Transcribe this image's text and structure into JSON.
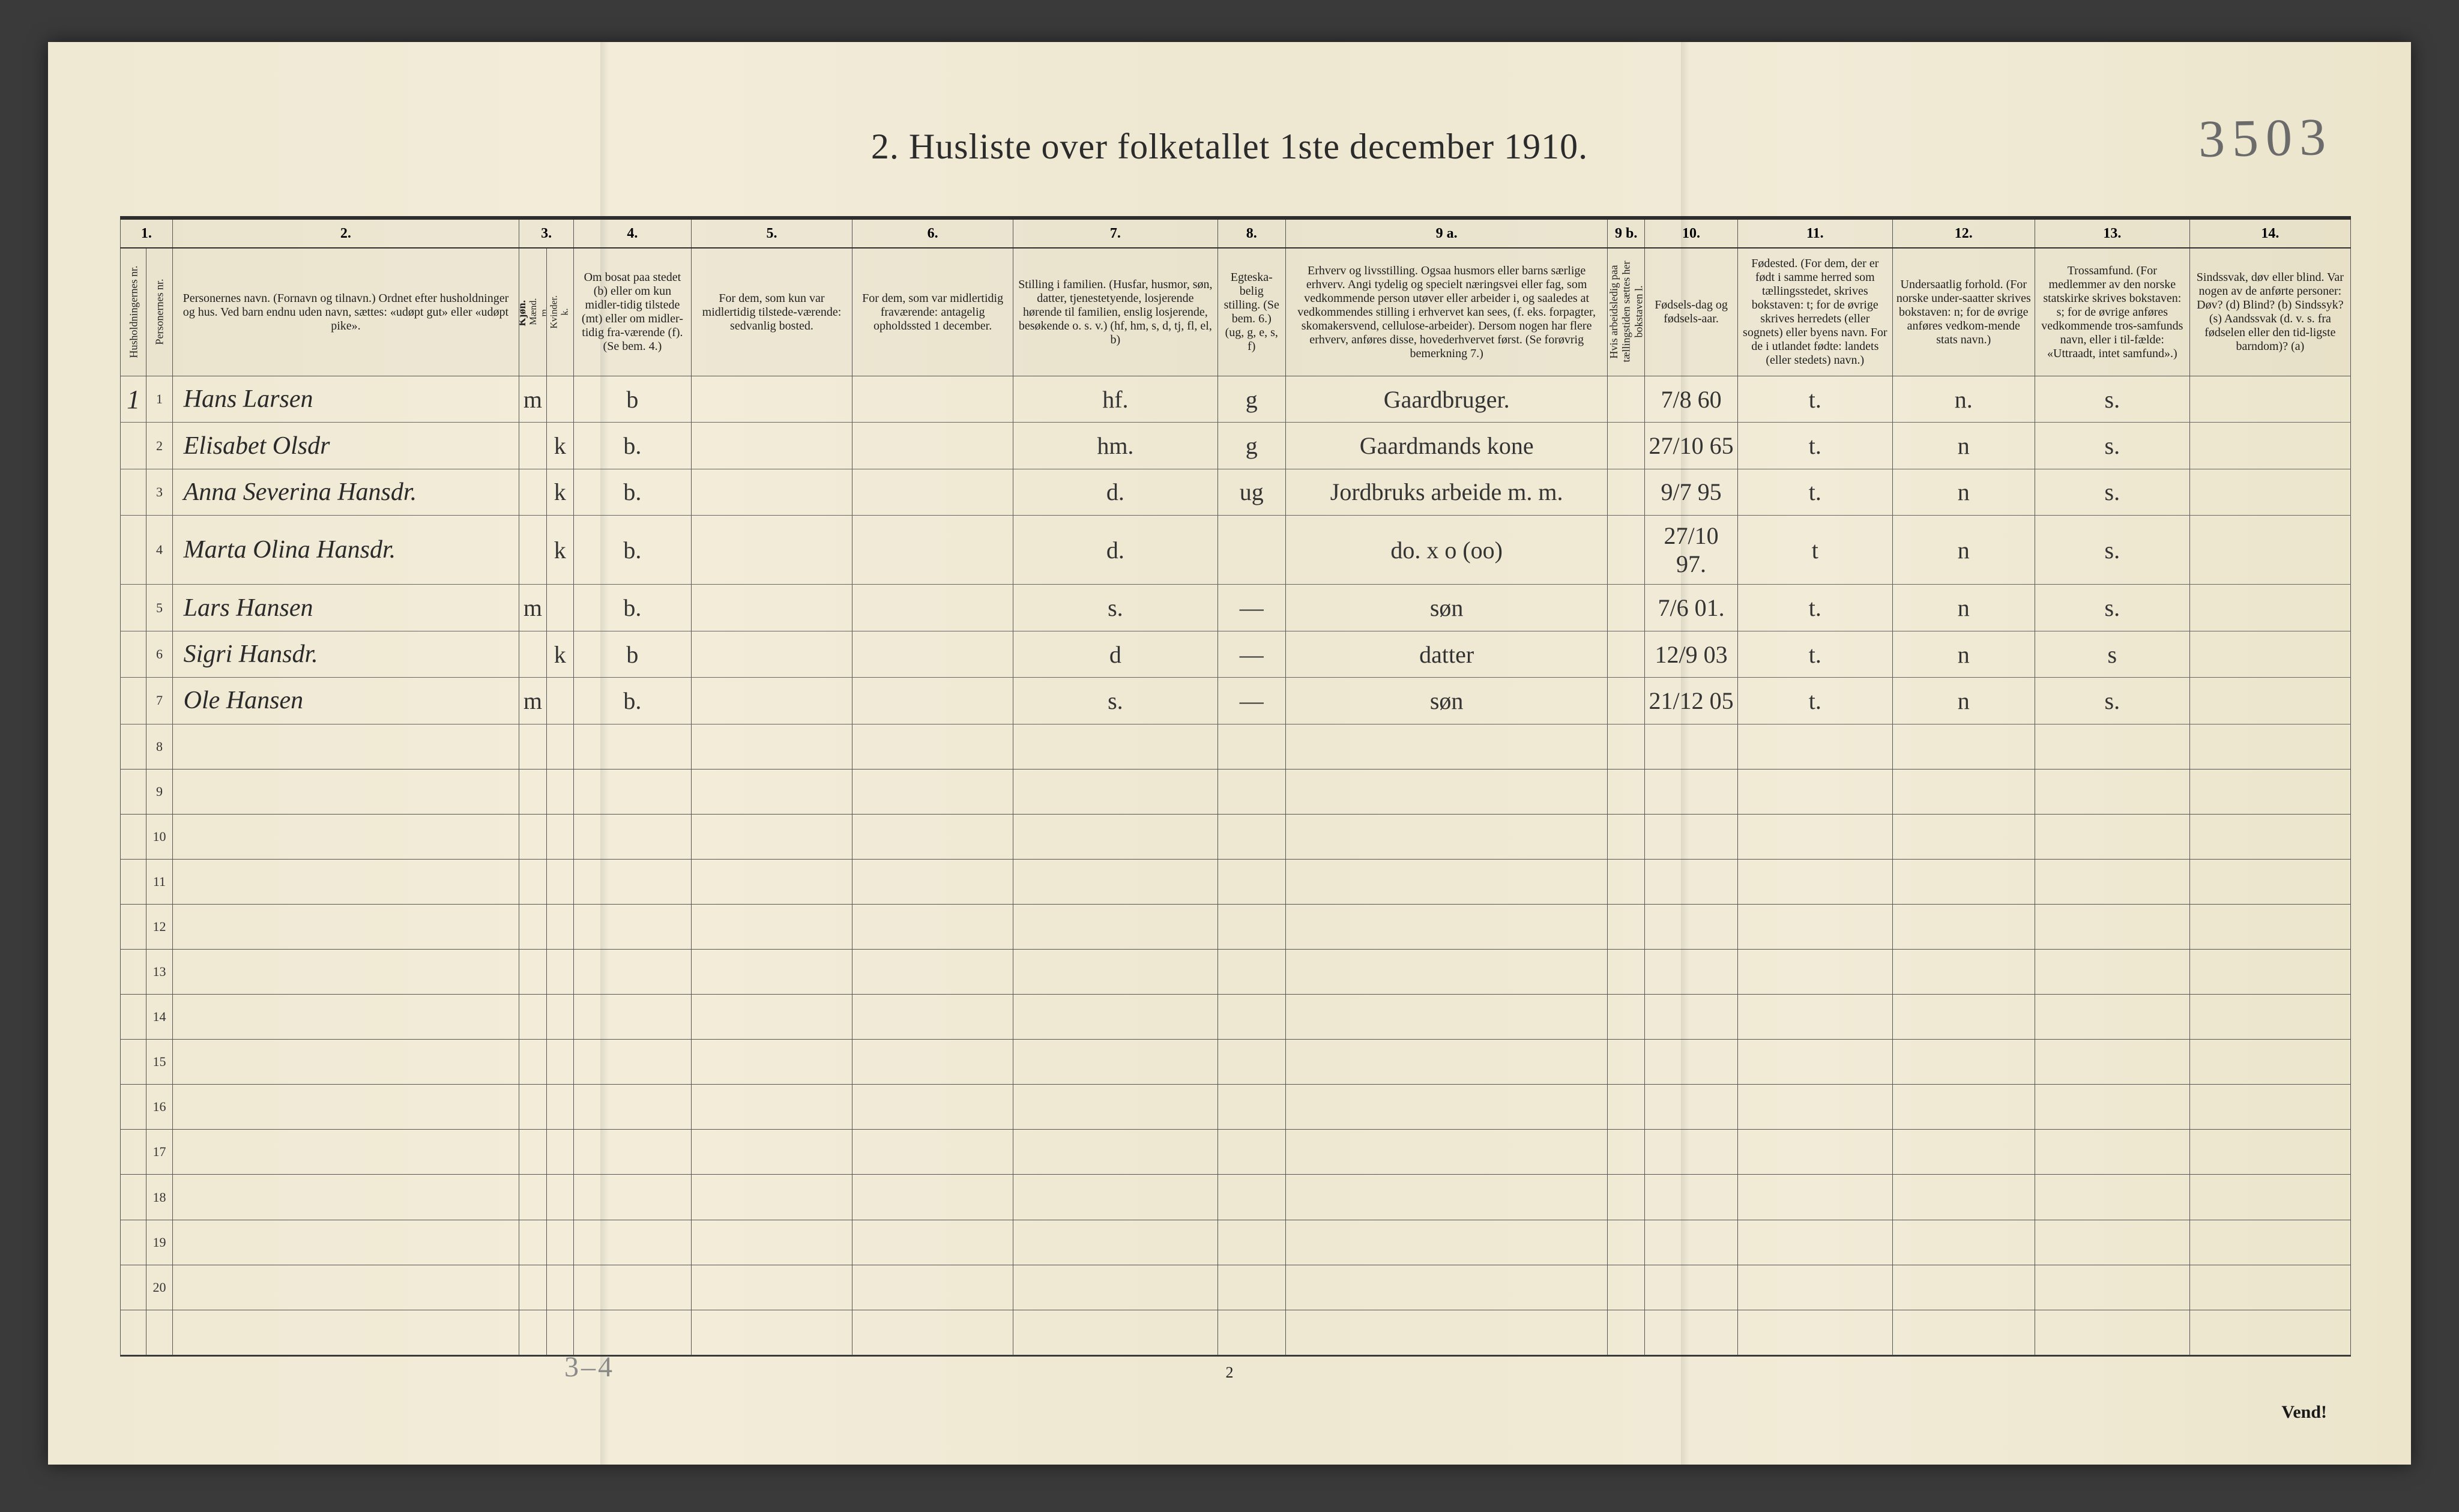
{
  "title": "2.  Husliste over folketallet 1ste december 1910.",
  "topright_pencil": "3503",
  "page_number": "2",
  "bottom_pencil": "3–4",
  "vend": "Vend!",
  "col_numbers": [
    "1.",
    "2.",
    "3.",
    "4.",
    "5.",
    "6.",
    "7.",
    "8.",
    "9 a.",
    "9 b.",
    "10.",
    "11.",
    "12.",
    "13.",
    "14."
  ],
  "headers": {
    "husholdning": "Husholdningernes nr.",
    "personnr": "Personernes nr.",
    "navn": "Personernes navn.\n(Fornavn og tilnavn.)\nOrdnet efter husholdninger og hus.\nVed barn endnu uden navn, sættes: «udøpt gut» eller «udøpt pike».",
    "kjon": "Kjøn.",
    "kj_m": "Mænd.",
    "kj_k": "Kvinder.",
    "bosat": "Om bosat paa stedet (b) eller om kun midler-tidig tilstede (mt) eller om midler-tidig fra-værende (f). (Se bem. 4.)",
    "tilstede": "For dem, som kun var midlertidig tilstede-værende:\nsedvanlig bosted.",
    "fravaer": "For dem, som var midlertidig fraværende:\nantagelig opholdssted 1 december.",
    "stilling": "Stilling i familien.\n(Husfar, husmor, søn, datter, tjenestetyende, losjerende hørende til familien, enslig losjerende, besøkende o. s. v.)\n(hf, hm, s, d, tj, fl, el, b)",
    "egte": "Egteska-belig stilling. (Se bem. 6.) (ug, g, e, s, f)",
    "erhverv": "Erhverv og livsstilling.\nOgsaa husmors eller barns særlige erhverv. Angi tydelig og specielt næringsvei eller fag, som vedkommende person utøver eller arbeider i, og saaledes at vedkommendes stilling i erhvervet kan sees, (f. eks. forpagter, skomakersvend, cellulose-arbeider). Dersom nogen har flere erhverv, anføres disse, hovederhvervet først. (Se forøvrig bemerkning 7.)",
    "arbledig": "Hvis arbeidsledig paa tællingstiden sættes her bokstaven l.",
    "fdag": "Fødsels-dag og fødsels-aar.",
    "fsted": "Fødested.\n(For dem, der er født i samme herred som tællingsstedet, skrives bokstaven: t; for de øvrige skrives herredets (eller sognets) eller byens navn. For de i utlandet fødte: landets (eller stedets) navn.)",
    "undersaat": "Undersaatlig forhold.\n(For norske under-saatter skrives bokstaven: n; for de øvrige anføres vedkom-mende stats navn.)",
    "tros": "Trossamfund.\n(For medlemmer av den norske statskirke skrives bokstaven: s; for de øvrige anføres vedkommende tros-samfunds navn, eller i til-fælde: «Uttraadt, intet samfund».)",
    "sinds": "Sindssvak, døv eller blind.\nVar nogen av de anførte personer:\nDøv? (d)\nBlind? (b)\nSindssyk? (s)\nAandssvak (d. v. s. fra fødselen eller den tid-ligste barndom)? (a)"
  },
  "rows": [
    {
      "hus": "1",
      "nr": "1",
      "navn": "Hans Larsen",
      "m": "m",
      "k": "",
      "b": "b",
      "til": "",
      "fra": "",
      "stil": "hf.",
      "eg": "g",
      "erh": "Gaardbruger.",
      "arb": "",
      "fd": "7/8 60",
      "fs": "t.",
      "un": "n.",
      "tr": "s.",
      "si": ""
    },
    {
      "hus": "",
      "nr": "2",
      "navn": "Elisabet Olsdr",
      "m": "",
      "k": "k",
      "b": "b.",
      "til": "",
      "fra": "",
      "stil": "hm.",
      "eg": "g",
      "erh": "Gaardmands kone",
      "arb": "",
      "fd": "27/10 65",
      "fs": "t.",
      "un": "n",
      "tr": "s.",
      "si": ""
    },
    {
      "hus": "",
      "nr": "3",
      "navn": "Anna Severina Hansdr.",
      "m": "",
      "k": "k",
      "b": "b.",
      "til": "",
      "fra": "",
      "stil": "d.",
      "eg": "ug",
      "erh": "Jordbruks arbeide m. m.",
      "arb": "",
      "fd": "9/7 95",
      "fs": "t.",
      "un": "n",
      "tr": "s.",
      "si": ""
    },
    {
      "hus": "",
      "nr": "4",
      "navn": "Marta Olina Hansdr.",
      "m": "",
      "k": "k",
      "b": "b.",
      "til": "",
      "fra": "",
      "stil": "d.",
      "eg": "",
      "erh": "do.      x o (oo)",
      "arb": "",
      "fd": "27/10 97.",
      "fs": "t",
      "un": "n",
      "tr": "s.",
      "si": ""
    },
    {
      "hus": "",
      "nr": "5",
      "navn": "Lars Hansen",
      "m": "m",
      "k": "",
      "b": "b.",
      "til": "",
      "fra": "",
      "stil": "s.",
      "eg": "—",
      "erh": "søn",
      "arb": "",
      "fd": "7/6 01.",
      "fs": "t.",
      "un": "n",
      "tr": "s.",
      "si": ""
    },
    {
      "hus": "",
      "nr": "6",
      "navn": "Sigri Hansdr.",
      "m": "",
      "k": "k",
      "b": "b",
      "til": "",
      "fra": "",
      "stil": "d",
      "eg": "—",
      "erh": "datter",
      "arb": "",
      "fd": "12/9 03",
      "fs": "t.",
      "un": "n",
      "tr": "s",
      "si": ""
    },
    {
      "hus": "",
      "nr": "7",
      "navn": "Ole Hansen",
      "m": "m",
      "k": "",
      "b": "b.",
      "til": "",
      "fra": "",
      "stil": "s.",
      "eg": "—",
      "erh": "søn",
      "arb": "",
      "fd": "21/12 05",
      "fs": "t.",
      "un": "n",
      "tr": "s.",
      "si": ""
    }
  ],
  "empty_row_numbers": [
    "8",
    "9",
    "10",
    "11",
    "12",
    "13",
    "14",
    "15",
    "16",
    "17",
    "18",
    "19",
    "20"
  ],
  "colors": {
    "paper": "#efe9d3",
    "ink": "#2b2b2b",
    "pencil": "#8a8a8a",
    "rule": "#555555"
  }
}
